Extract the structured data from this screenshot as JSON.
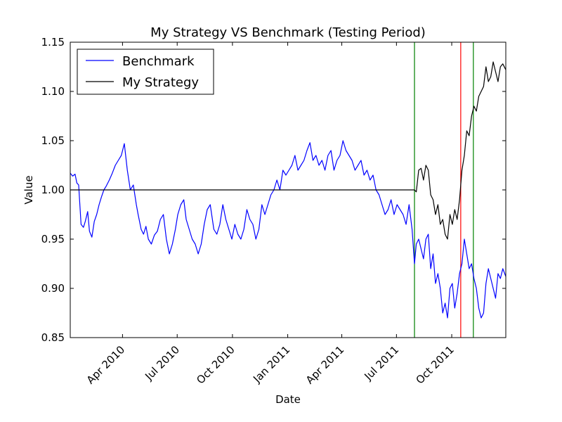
{
  "chart_data": {
    "type": "line",
    "title": "My Strategy VS Benchmark (Testing Period)",
    "xlabel": "Date",
    "ylabel": "Value",
    "xlim": [
      "2010-01-04",
      "2011-12-30"
    ],
    "ylim": [
      0.85,
      1.15
    ],
    "grid": false,
    "legend_position": "top-left",
    "yticks": [
      0.85,
      0.9,
      0.95,
      1.0,
      1.05,
      1.1,
      1.15
    ],
    "yticklabels": [
      "0.85",
      "0.90",
      "0.95",
      "1.00",
      "1.05",
      "1.10",
      "1.15"
    ],
    "xticks": [
      "2010-04-01",
      "2010-07-01",
      "2010-10-01",
      "2011-01-01",
      "2011-04-01",
      "2011-07-01",
      "2011-10-01"
    ],
    "xticklabels": [
      "Apr 2010",
      "Jul 2010",
      "Oct 2010",
      "Jan 2011",
      "Apr 2011",
      "Jul 2011",
      "Oct 2011"
    ],
    "series": [
      {
        "name": "Benchmark",
        "color": "#0000ff",
        "x": [
          "2010-01-04",
          "2010-01-08",
          "2010-01-12",
          "2010-01-15",
          "2010-01-18",
          "2010-01-22",
          "2010-01-26",
          "2010-01-29",
          "2010-02-02",
          "2010-02-05",
          "2010-02-09",
          "2010-02-13",
          "2010-02-17",
          "2010-02-21",
          "2010-02-25",
          "2010-03-01",
          "2010-03-05",
          "2010-03-10",
          "2010-03-15",
          "2010-03-20",
          "2010-03-25",
          "2010-03-30",
          "2010-04-04",
          "2010-04-09",
          "2010-04-14",
          "2010-04-19",
          "2010-04-24",
          "2010-04-27",
          "2010-05-02",
          "2010-05-06",
          "2010-05-10",
          "2010-05-14",
          "2010-05-19",
          "2010-05-24",
          "2010-05-29",
          "2010-06-03",
          "2010-06-08",
          "2010-06-13",
          "2010-06-18",
          "2010-06-23",
          "2010-06-28",
          "2010-07-02",
          "2010-07-07",
          "2010-07-12",
          "2010-07-16",
          "2010-07-21",
          "2010-07-26",
          "2010-07-31",
          "2010-08-05",
          "2010-08-10",
          "2010-08-15",
          "2010-08-20",
          "2010-08-25",
          "2010-08-31",
          "2010-09-05",
          "2010-09-10",
          "2010-09-15",
          "2010-09-20",
          "2010-09-25",
          "2010-09-30",
          "2010-10-05",
          "2010-10-10",
          "2010-10-15",
          "2010-10-20",
          "2010-10-25",
          "2010-10-30",
          "2010-11-04",
          "2010-11-09",
          "2010-11-14",
          "2010-11-19",
          "2010-11-24",
          "2010-11-29",
          "2010-12-04",
          "2010-12-09",
          "2010-12-14",
          "2010-12-19",
          "2010-12-24",
          "2010-12-29",
          "2011-01-03",
          "2011-01-08",
          "2011-01-13",
          "2011-01-18",
          "2011-01-23",
          "2011-01-28",
          "2011-02-02",
          "2011-02-07",
          "2011-02-12",
          "2011-02-17",
          "2011-02-22",
          "2011-02-27",
          "2011-03-04",
          "2011-03-09",
          "2011-03-14",
          "2011-03-19",
          "2011-03-24",
          "2011-03-29",
          "2011-04-03",
          "2011-04-08",
          "2011-04-13",
          "2011-04-18",
          "2011-04-23",
          "2011-04-28",
          "2011-05-03",
          "2011-05-08",
          "2011-05-13",
          "2011-05-18",
          "2011-05-23",
          "2011-05-28",
          "2011-06-02",
          "2011-06-07",
          "2011-06-12",
          "2011-06-17",
          "2011-06-22",
          "2011-06-27",
          "2011-07-02",
          "2011-07-07",
          "2011-07-12",
          "2011-07-17",
          "2011-07-22",
          "2011-07-27",
          "2011-07-31",
          "2011-08-03",
          "2011-08-07",
          "2011-08-11",
          "2011-08-15",
          "2011-08-19",
          "2011-08-23",
          "2011-08-27",
          "2011-08-31",
          "2011-09-04",
          "2011-09-08",
          "2011-09-12",
          "2011-09-16",
          "2011-09-20",
          "2011-09-24",
          "2011-09-28",
          "2011-10-02",
          "2011-10-06",
          "2011-10-10",
          "2011-10-14",
          "2011-10-18",
          "2011-10-22",
          "2011-10-26",
          "2011-10-30",
          "2011-11-03",
          "2011-11-07",
          "2011-11-11",
          "2011-11-15",
          "2011-11-19",
          "2011-11-23",
          "2011-11-27",
          "2011-12-01",
          "2011-12-05",
          "2011-12-09",
          "2011-12-13",
          "2011-12-17",
          "2011-12-21",
          "2011-12-25",
          "2011-12-30"
        ],
        "y": [
          1.017,
          1.014,
          1.016,
          1.007,
          1.005,
          0.965,
          0.962,
          0.968,
          0.978,
          0.958,
          0.952,
          0.968,
          0.975,
          0.985,
          0.993,
          1.0,
          1.004,
          1.01,
          1.017,
          1.025,
          1.03,
          1.035,
          1.047,
          1.02,
          1.0,
          1.005,
          0.985,
          0.975,
          0.96,
          0.955,
          0.963,
          0.95,
          0.945,
          0.954,
          0.958,
          0.97,
          0.975,
          0.95,
          0.935,
          0.945,
          0.96,
          0.975,
          0.985,
          0.99,
          0.97,
          0.96,
          0.95,
          0.945,
          0.935,
          0.945,
          0.965,
          0.98,
          0.985,
          0.96,
          0.955,
          0.965,
          0.985,
          0.97,
          0.96,
          0.95,
          0.965,
          0.955,
          0.95,
          0.96,
          0.98,
          0.97,
          0.965,
          0.95,
          0.96,
          0.985,
          0.975,
          0.985,
          0.995,
          1.0,
          1.01,
          1.0,
          1.02,
          1.015,
          1.02,
          1.025,
          1.035,
          1.02,
          1.025,
          1.03,
          1.04,
          1.048,
          1.03,
          1.035,
          1.025,
          1.03,
          1.02,
          1.035,
          1.04,
          1.02,
          1.03,
          1.035,
          1.05,
          1.04,
          1.035,
          1.03,
          1.02,
          1.025,
          1.03,
          1.015,
          1.02,
          1.01,
          1.015,
          1.0,
          0.995,
          0.985,
          0.975,
          0.98,
          0.99,
          0.975,
          0.985,
          0.98,
          0.975,
          0.965,
          0.985,
          0.96,
          0.925,
          0.945,
          0.95,
          0.94,
          0.93,
          0.95,
          0.955,
          0.92,
          0.935,
          0.905,
          0.915,
          0.9,
          0.875,
          0.885,
          0.87,
          0.9,
          0.905,
          0.88,
          0.895,
          0.915,
          0.925,
          0.95,
          0.935,
          0.92,
          0.925,
          0.91,
          0.9,
          0.88,
          0.87,
          0.875,
          0.905,
          0.92,
          0.91,
          0.9,
          0.89,
          0.915,
          0.91,
          0.92,
          0.912
        ]
      },
      {
        "name": "My Strategy",
        "color": "#000000",
        "x": [
          "2010-01-04",
          "2011-07-31",
          "2011-08-03",
          "2011-08-07",
          "2011-08-11",
          "2011-08-15",
          "2011-08-19",
          "2011-08-23",
          "2011-08-27",
          "2011-08-31",
          "2011-09-04",
          "2011-09-08",
          "2011-09-12",
          "2011-09-16",
          "2011-09-20",
          "2011-09-24",
          "2011-09-28",
          "2011-10-02",
          "2011-10-06",
          "2011-10-10",
          "2011-10-14",
          "2011-10-18",
          "2011-10-22",
          "2011-10-26",
          "2011-10-30",
          "2011-11-03",
          "2011-11-07",
          "2011-11-11",
          "2011-11-15",
          "2011-11-19",
          "2011-11-23",
          "2011-11-27",
          "2011-12-01",
          "2011-12-05",
          "2011-12-09",
          "2011-12-13",
          "2011-12-17",
          "2011-12-21",
          "2011-12-25",
          "2011-12-30"
        ],
        "y": [
          1.0,
          1.0,
          0.998,
          1.02,
          1.022,
          1.01,
          1.025,
          1.02,
          0.995,
          0.99,
          0.975,
          0.985,
          0.965,
          0.97,
          0.955,
          0.95,
          0.975,
          0.965,
          0.98,
          0.97,
          0.99,
          1.02,
          1.035,
          1.06,
          1.055,
          1.075,
          1.085,
          1.08,
          1.095,
          1.1,
          1.105,
          1.125,
          1.11,
          1.115,
          1.13,
          1.12,
          1.11,
          1.125,
          1.128,
          1.122
        ]
      }
    ],
    "vlines": [
      {
        "x": "2011-07-31",
        "color": "#008000"
      },
      {
        "x": "2011-10-16",
        "color": "#ff0000"
      },
      {
        "x": "2011-11-06",
        "color": "#008000"
      }
    ]
  }
}
